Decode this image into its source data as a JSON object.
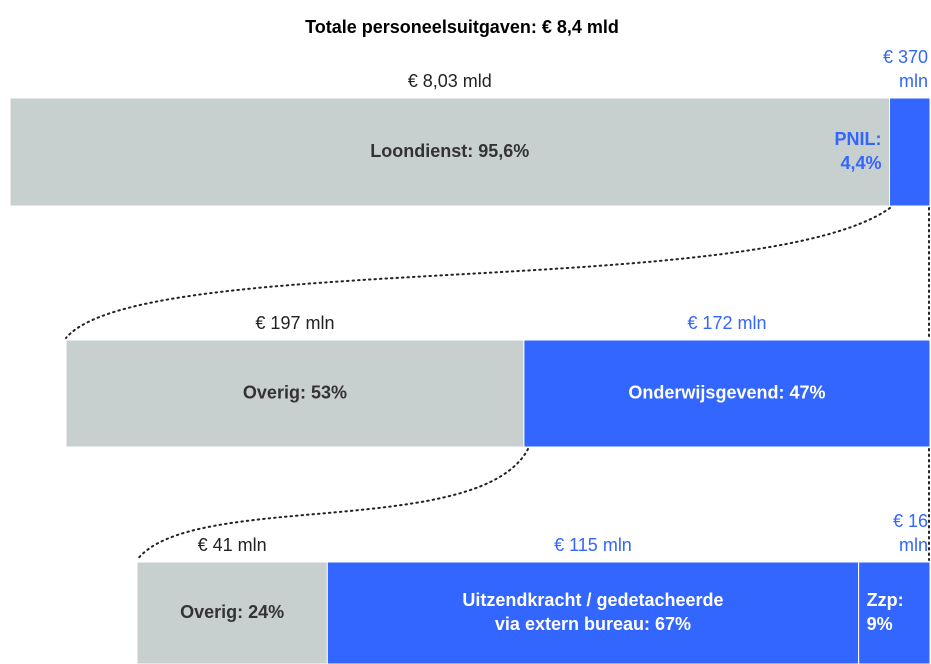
{
  "title": "Totale personeelsuitgaven: € 8,4 mld",
  "levels": [
    {
      "segments": [
        {
          "amount": [
            "€ 8,03 mld"
          ],
          "label": [
            "Loondienst: 95,6%"
          ],
          "value": 95.6,
          "color": "#c8cfcf",
          "amount_color": "#222222",
          "label_color": "#333333"
        },
        {
          "amount": [
            "€ 370",
            "mln"
          ],
          "label": [
            "PNIL:",
            "4,4%"
          ],
          "value": 4.4,
          "color": "#3366ff",
          "amount_color": "#3366ff",
          "label_color": "#3366ff"
        }
      ]
    },
    {
      "segments": [
        {
          "amount": [
            "€ 197 mln"
          ],
          "label": [
            "Overig: 53%"
          ],
          "value": 53,
          "color": "#c8cfcf",
          "amount_color": "#222222",
          "label_color": "#333333"
        },
        {
          "amount": [
            "€ 172 mln"
          ],
          "label": [
            "Onderwijsgevend: 47%"
          ],
          "value": 47,
          "color": "#3366ff",
          "amount_color": "#3366ff",
          "label_color": "#ffffff"
        }
      ]
    },
    {
      "segments": [
        {
          "amount": [
            "€ 41 mln"
          ],
          "label": [
            "Overig: 24%"
          ],
          "value": 24,
          "color": "#c8cfcf",
          "amount_color": "#222222",
          "label_color": "#333333"
        },
        {
          "amount": [
            "€ 115 mln"
          ],
          "label": [
            "Uitzendkracht / gedetacheerde",
            "via extern bureau: 67%"
          ],
          "value": 67,
          "color": "#3366ff",
          "amount_color": "#3366ff",
          "label_color": "#ffffff"
        },
        {
          "amount": [
            "€ 16",
            "mln"
          ],
          "label": [
            "Zzp:",
            "9%"
          ],
          "value": 9,
          "color": "#3366ff",
          "amount_color": "#3366ff",
          "label_color": "#ffffff"
        }
      ]
    }
  ]
}
